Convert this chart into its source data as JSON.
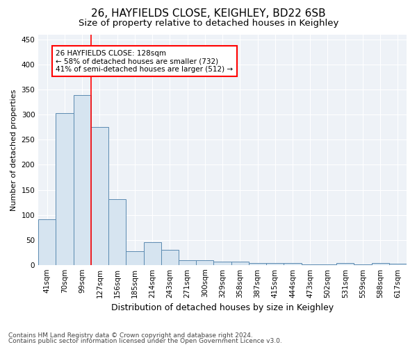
{
  "title1": "26, HAYFIELDS CLOSE, KEIGHLEY, BD22 6SB",
  "title2": "Size of property relative to detached houses in Keighley",
  "xlabel": "Distribution of detached houses by size in Keighley",
  "ylabel": "Number of detached properties",
  "footer1": "Contains HM Land Registry data © Crown copyright and database right 2024.",
  "footer2": "Contains public sector information licensed under the Open Government Licence v3.0.",
  "bar_labels": [
    "41sqm",
    "70sqm",
    "99sqm",
    "127sqm",
    "156sqm",
    "185sqm",
    "214sqm",
    "243sqm",
    "271sqm",
    "300sqm",
    "329sqm",
    "358sqm",
    "387sqm",
    "415sqm",
    "444sqm",
    "473sqm",
    "502sqm",
    "531sqm",
    "559sqm",
    "588sqm",
    "617sqm"
  ],
  "bar_values": [
    91,
    303,
    340,
    276,
    131,
    27,
    46,
    30,
    9,
    9,
    7,
    7,
    4,
    4,
    4,
    1,
    1,
    4,
    1,
    4,
    3
  ],
  "bar_color": "#d6e4f0",
  "bar_edge_color": "#5a8ab0",
  "red_line_x": 3,
  "annotation_line1": "26 HAYFIELDS CLOSE: 128sqm",
  "annotation_line2": "← 58% of detached houses are smaller (732)",
  "annotation_line3": "41% of semi-detached houses are larger (512) →",
  "annotation_box_color": "white",
  "annotation_box_edge": "red",
  "ylim": [
    0,
    460
  ],
  "yticks": [
    0,
    50,
    100,
    150,
    200,
    250,
    300,
    350,
    400,
    450
  ],
  "background_color": "#eef2f7",
  "grid_color": "white",
  "title1_fontsize": 11,
  "title2_fontsize": 9.5,
  "xlabel_fontsize": 9,
  "ylabel_fontsize": 8,
  "tick_fontsize": 7.5,
  "footer_fontsize": 6.5
}
